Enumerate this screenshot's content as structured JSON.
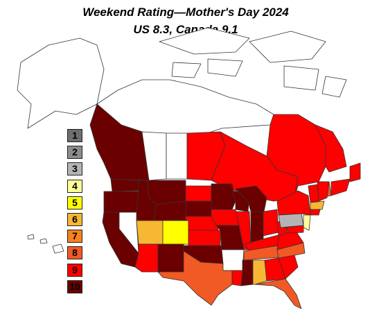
{
  "title": {
    "line1": "Weekend Rating—Mother's Day 2024",
    "line2": "US 8.3, Canada 9.1"
  },
  "scale": {
    "colors": {
      "1": "#6e6e6e",
      "2": "#8c8c8c",
      "3": "#b4b4b4",
      "4": "#ffff99",
      "5": "#ffff00",
      "6": "#f7b733",
      "7": "#f58220",
      "8": "#f15a24",
      "9": "#ff0000",
      "10": "#6b0000"
    },
    "legend": [
      {
        "label": "1",
        "color": "#6e6e6e"
      },
      {
        "label": "2",
        "color": "#8c8c8c"
      },
      {
        "label": "3",
        "color": "#b4b4b4"
      },
      {
        "label": "4",
        "color": "#ffff99"
      },
      {
        "label": "5",
        "color": "#ffff00"
      },
      {
        "label": "6",
        "color": "#f7b733"
      },
      {
        "label": "7",
        "color": "#f58220"
      },
      {
        "label": "8",
        "color": "#f15a24"
      },
      {
        "label": "9",
        "color": "#ff0000"
      },
      {
        "label": "10",
        "color": "#6b0000"
      }
    ]
  },
  "regions": [
    {
      "name": "Yukon/NWT/Nunavut",
      "rating": null
    },
    {
      "name": "Alaska",
      "rating": null
    },
    {
      "name": "British Columbia",
      "rating": 10
    },
    {
      "name": "Alberta",
      "rating": null
    },
    {
      "name": "Saskatchewan",
      "rating": null
    },
    {
      "name": "Manitoba",
      "rating": 9
    },
    {
      "name": "Ontario",
      "rating": 9
    },
    {
      "name": "Quebec",
      "rating": 9
    },
    {
      "name": "Newfoundland/Labrador",
      "rating": 9
    },
    {
      "name": "New Brunswick",
      "rating": 8
    },
    {
      "name": "Nova Scotia",
      "rating": 9
    },
    {
      "name": "Washington",
      "rating": 10
    },
    {
      "name": "Oregon",
      "rating": 10
    },
    {
      "name": "California",
      "rating": 10
    },
    {
      "name": "Idaho",
      "rating": 10
    },
    {
      "name": "Nevada",
      "rating": null
    },
    {
      "name": "Montana",
      "rating": 10
    },
    {
      "name": "Wyoming",
      "rating": 10
    },
    {
      "name": "Utah",
      "rating": 6
    },
    {
      "name": "Colorado",
      "rating": 5
    },
    {
      "name": "Arizona",
      "rating": 9
    },
    {
      "name": "New Mexico",
      "rating": 10
    },
    {
      "name": "North Dakota",
      "rating": 9
    },
    {
      "name": "South Dakota",
      "rating": 10
    },
    {
      "name": "Nebraska",
      "rating": 9
    },
    {
      "name": "Kansas",
      "rating": 9
    },
    {
      "name": "Oklahoma",
      "rating": 10
    },
    {
      "name": "Texas",
      "rating": 8
    },
    {
      "name": "Minnesota",
      "rating": 10
    },
    {
      "name": "Iowa",
      "rating": 9
    },
    {
      "name": "Missouri",
      "rating": 10
    },
    {
      "name": "Arkansas",
      "rating": null
    },
    {
      "name": "Louisiana",
      "rating": 9
    },
    {
      "name": "Wisconsin",
      "rating": 10
    },
    {
      "name": "Illinois",
      "rating": 9
    },
    {
      "name": "Michigan",
      "rating": 10
    },
    {
      "name": "Indiana",
      "rating": 10
    },
    {
      "name": "Ohio",
      "rating": 9
    },
    {
      "name": "Kentucky",
      "rating": 9
    },
    {
      "name": "Tennessee",
      "rating": 8
    },
    {
      "name": "Mississippi",
      "rating": 10
    },
    {
      "name": "Alabama",
      "rating": 6
    },
    {
      "name": "Georgia",
      "rating": 9
    },
    {
      "name": "Florida",
      "rating": 8
    },
    {
      "name": "South Carolina",
      "rating": 9
    },
    {
      "name": "North Carolina",
      "rating": 8
    },
    {
      "name": "Virginia",
      "rating": 9
    },
    {
      "name": "West Virginia",
      "rating": 9
    },
    {
      "name": "Pennsylvania",
      "rating": 3
    },
    {
      "name": "New York",
      "rating": 9
    },
    {
      "name": "New Jersey",
      "rating": 4
    },
    {
      "name": "Maryland",
      "rating": 9
    },
    {
      "name": "Vermont/New Hampshire",
      "rating": 9
    },
    {
      "name": "Maine",
      "rating": 9
    },
    {
      "name": "Massachusetts",
      "rating": 6
    },
    {
      "name": "Connecticut",
      "rating": 9
    }
  ]
}
